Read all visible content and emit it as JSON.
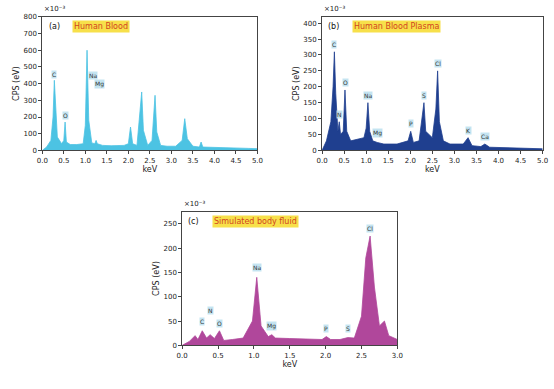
{
  "chart_data": [
    {
      "type": "area",
      "panel": "(a)",
      "title": "Human Blood",
      "color": "#4cc3e3",
      "x_label": "keV",
      "y_label": "CPS (eV)",
      "y_scale_label": "×10⁻³",
      "x": [
        0,
        0.1,
        0.2,
        0.25,
        0.28,
        0.31,
        0.35,
        0.45,
        0.5,
        0.53,
        0.56,
        0.65,
        0.8,
        0.95,
        1.0,
        1.04,
        1.08,
        1.15,
        1.22,
        1.25,
        1.28,
        1.4,
        1.6,
        1.9,
        2.0,
        2.05,
        2.1,
        2.2,
        2.27,
        2.31,
        2.35,
        2.45,
        2.55,
        2.62,
        2.66,
        2.75,
        2.9,
        3.1,
        3.25,
        3.31,
        3.37,
        3.5,
        3.65,
        3.69,
        3.73,
        3.9,
        4.2,
        4.5,
        4.8,
        5.0
      ],
      "values": [
        0,
        20,
        60,
        200,
        420,
        250,
        80,
        40,
        60,
        170,
        50,
        35,
        35,
        40,
        150,
        600,
        180,
        45,
        40,
        60,
        40,
        30,
        28,
        30,
        40,
        140,
        40,
        30,
        240,
        350,
        120,
        30,
        60,
        330,
        110,
        30,
        25,
        25,
        60,
        190,
        70,
        25,
        20,
        50,
        20,
        18,
        15,
        15,
        12,
        10
      ],
      "xlim": [
        0,
        5
      ],
      "ylim": [
        0,
        800
      ],
      "xticks": [
        {
          "value": 0,
          "label": "0.0"
        },
        0.5,
        {
          "value": 1,
          "label": "1.0"
        },
        1.5,
        {
          "value": 2,
          "label": "2.0"
        },
        2.5,
        {
          "value": 3,
          "label": "3.0"
        },
        3.5,
        {
          "value": 4,
          "label": "4.0"
        },
        4.5,
        {
          "value": 5,
          "label": "5.0"
        }
      ],
      "yticks": [
        0,
        100,
        200,
        300,
        400,
        500,
        600,
        700,
        800
      ],
      "annotations": [
        {
          "text": "C",
          "x": 0.28,
          "y": 430
        },
        {
          "text": "O",
          "x": 0.53,
          "y": 180
        },
        {
          "text": "Na",
          "x": 1.17,
          "y": 420
        },
        {
          "text": "Mg",
          "x": 1.32,
          "y": 370
        }
      ]
    },
    {
      "type": "area",
      "panel": "(b)",
      "title": "Human Blood Plasma",
      "color": "#1f3f8f",
      "x_label": "keV",
      "y_label": "CPS (eV)",
      "y_scale_label": "×10⁻³",
      "x": [
        0,
        0.1,
        0.2,
        0.25,
        0.28,
        0.31,
        0.36,
        0.39,
        0.42,
        0.48,
        0.52,
        0.56,
        0.65,
        0.8,
        0.95,
        1.0,
        1.04,
        1.08,
        1.15,
        1.25,
        1.4,
        1.7,
        1.95,
        2.01,
        2.07,
        2.2,
        2.27,
        2.31,
        2.35,
        2.5,
        2.58,
        2.62,
        2.66,
        2.75,
        2.9,
        3.2,
        3.31,
        3.4,
        3.6,
        3.69,
        3.8,
        4.2,
        4.6,
        5.0
      ],
      "values": [
        0,
        30,
        90,
        200,
        310,
        180,
        60,
        90,
        50,
        60,
        190,
        60,
        30,
        35,
        40,
        70,
        150,
        60,
        30,
        25,
        20,
        20,
        30,
        60,
        25,
        30,
        110,
        150,
        60,
        40,
        130,
        250,
        90,
        30,
        20,
        20,
        40,
        15,
        12,
        20,
        10,
        8,
        6,
        5
      ],
      "xlim": [
        0,
        5
      ],
      "ylim": [
        0,
        420
      ],
      "xticks": [
        {
          "value": 0,
          "label": "0.0"
        },
        0.5,
        {
          "value": 1,
          "label": "1.0"
        },
        1.5,
        {
          "value": 2,
          "label": "2.0"
        },
        2.5,
        {
          "value": 3,
          "label": "3.0"
        },
        3.5,
        {
          "value": 4,
          "label": "4.0"
        },
        4.5,
        {
          "value": 5,
          "label": "5.0"
        }
      ],
      "yticks": [
        0,
        50,
        100,
        150,
        200,
        250,
        300,
        350,
        400
      ],
      "annotations": [
        {
          "text": "C",
          "x": 0.28,
          "y": 320
        },
        {
          "text": "N",
          "x": 0.39,
          "y": 100
        },
        {
          "text": "O",
          "x": 0.54,
          "y": 200
        },
        {
          "text": "Na",
          "x": 1.04,
          "y": 160
        },
        {
          "text": "Mg",
          "x": 1.25,
          "y": 40
        },
        {
          "text": "P",
          "x": 2.01,
          "y": 70
        },
        {
          "text": "S",
          "x": 2.31,
          "y": 160
        },
        {
          "text": "Cl",
          "x": 2.62,
          "y": 260
        },
        {
          "text": "K",
          "x": 3.31,
          "y": 50
        },
        {
          "text": "Ca",
          "x": 3.69,
          "y": 30
        }
      ]
    },
    {
      "type": "area",
      "panel": "(c)",
      "title": "Simulated body fluid",
      "color": "#b0479b",
      "x_label": "keV",
      "y_label": "CPS (eV)",
      "y_scale_label": "×10⁻³",
      "x": [
        0,
        0.1,
        0.18,
        0.22,
        0.28,
        0.34,
        0.39,
        0.45,
        0.52,
        0.58,
        0.7,
        0.85,
        0.98,
        1.04,
        1.1,
        1.2,
        1.25,
        1.3,
        1.5,
        1.8,
        1.95,
        2.01,
        2.07,
        2.2,
        2.31,
        2.4,
        2.5,
        2.56,
        2.62,
        2.68,
        2.75,
        2.82,
        2.88,
        3.0
      ],
      "values": [
        0,
        8,
        20,
        12,
        30,
        15,
        22,
        14,
        30,
        10,
        12,
        15,
        50,
        140,
        40,
        18,
        22,
        15,
        14,
        12,
        12,
        18,
        12,
        12,
        16,
        15,
        60,
        180,
        225,
        120,
        40,
        50,
        20,
        12
      ],
      "xlim": [
        0,
        3
      ],
      "ylim": [
        0,
        275
      ],
      "xticks": [
        {
          "value": 0,
          "label": "0.0"
        },
        0.5,
        {
          "value": 1,
          "label": "1.0"
        },
        1.5,
        {
          "value": 2,
          "label": "2.0"
        },
        2.5,
        {
          "value": 3,
          "label": "3.0"
        }
      ],
      "yticks": [
        0,
        50,
        100,
        150,
        200,
        250
      ],
      "annotations": [
        {
          "text": "C",
          "x": 0.28,
          "y": 40
        },
        {
          "text": "N",
          "x": 0.39,
          "y": 62
        },
        {
          "text": "O",
          "x": 0.52,
          "y": 36
        },
        {
          "text": "Na",
          "x": 1.04,
          "y": 150
        },
        {
          "text": "Mg",
          "x": 1.25,
          "y": 30
        },
        {
          "text": "P",
          "x": 2.01,
          "y": 25
        },
        {
          "text": "S",
          "x": 2.31,
          "y": 25
        },
        {
          "text": "Cl",
          "x": 2.62,
          "y": 232
        }
      ]
    }
  ]
}
